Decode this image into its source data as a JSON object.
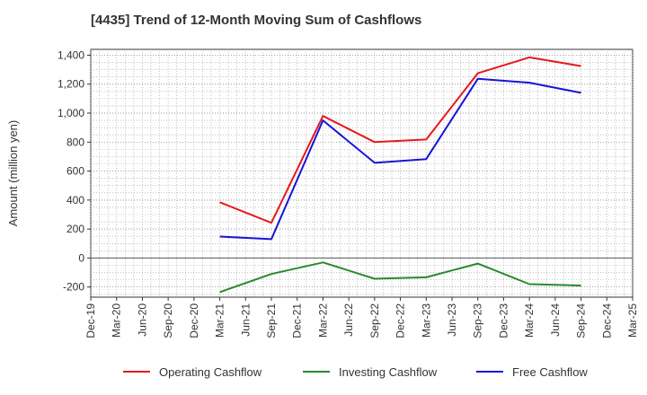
{
  "chart_data": {
    "type": "line",
    "title": "[4435]  Trend of 12-Month Moving Sum of Cashflows",
    "xlabel": "",
    "ylabel": "Amount (million yen)",
    "categories": [
      "Dec-19",
      "Mar-20",
      "Jun-20",
      "Sep-20",
      "Dec-20",
      "Mar-21",
      "Jun-21",
      "Sep-21",
      "Dec-21",
      "Mar-22",
      "Jun-22",
      "Sep-22",
      "Dec-22",
      "Mar-23",
      "Jun-23",
      "Sep-23",
      "Dec-23",
      "Mar-24",
      "Jun-24",
      "Sep-24",
      "Dec-24",
      "Mar-25"
    ],
    "ylim": [
      -270,
      1440
    ],
    "yticks": [
      -200,
      0,
      200,
      400,
      600,
      800,
      1000,
      1200,
      1400
    ],
    "ytick_labels": [
      "-200",
      "0",
      "200",
      "400",
      "600",
      "800",
      "1,000",
      "1,200",
      "1,400"
    ],
    "grid": true,
    "legend_position": "bottom",
    "series": [
      {
        "name": "Operating Cashflow",
        "color": "#e41a1c",
        "points": [
          {
            "x": "Mar-21",
            "y": 385
          },
          {
            "x": "Sep-21",
            "y": 243
          },
          {
            "x": "Mar-22",
            "y": 980
          },
          {
            "x": "Sep-22",
            "y": 800
          },
          {
            "x": "Mar-23",
            "y": 818
          },
          {
            "x": "Sep-23",
            "y": 1275
          },
          {
            "x": "Mar-24",
            "y": 1385
          },
          {
            "x": "Sep-24",
            "y": 1325
          }
        ]
      },
      {
        "name": "Investing Cashflow",
        "color": "#2a8a2a",
        "points": [
          {
            "x": "Mar-21",
            "y": -235
          },
          {
            "x": "Sep-21",
            "y": -110
          },
          {
            "x": "Mar-22",
            "y": -30
          },
          {
            "x": "Sep-22",
            "y": -143
          },
          {
            "x": "Mar-23",
            "y": -133
          },
          {
            "x": "Sep-23",
            "y": -38
          },
          {
            "x": "Mar-24",
            "y": -180
          },
          {
            "x": "Sep-24",
            "y": -190
          }
        ]
      },
      {
        "name": "Free Cashflow",
        "color": "#1515d6",
        "points": [
          {
            "x": "Mar-21",
            "y": 148
          },
          {
            "x": "Sep-21",
            "y": 130
          },
          {
            "x": "Mar-22",
            "y": 950
          },
          {
            "x": "Sep-22",
            "y": 657
          },
          {
            "x": "Mar-23",
            "y": 683
          },
          {
            "x": "Sep-23",
            "y": 1237
          },
          {
            "x": "Mar-24",
            "y": 1210
          },
          {
            "x": "Sep-24",
            "y": 1140
          }
        ]
      }
    ]
  }
}
